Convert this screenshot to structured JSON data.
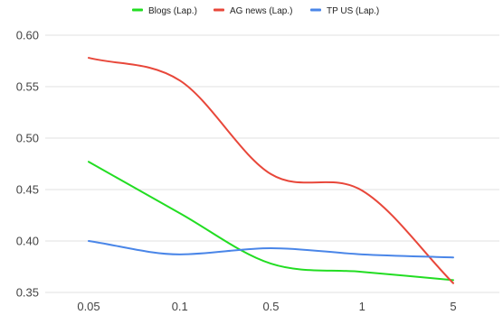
{
  "chart_data": {
    "type": "line",
    "title": "",
    "xlabel": "",
    "ylabel": "",
    "categories": [
      "0.05",
      "0.1",
      "0.5",
      "1",
      "5"
    ],
    "ylim": [
      0.35,
      0.6
    ],
    "yticks": [
      "0.35",
      "0.40",
      "0.45",
      "0.50",
      "0.55",
      "0.60"
    ],
    "grid": true,
    "smooth": true,
    "legend_position": "top-center",
    "series": [
      {
        "name": "Blogs (Lap.)",
        "color": "#22dd22",
        "values": [
          0.477,
          0.427,
          0.378,
          0.37,
          0.362
        ]
      },
      {
        "name": "AG news (Lap.)",
        "color": "#e8473a",
        "values": [
          0.578,
          0.556,
          0.465,
          0.449,
          0.359
        ]
      },
      {
        "name": "TP US (Lap.)",
        "color": "#4a86e8",
        "values": [
          0.4,
          0.387,
          0.393,
          0.387,
          0.384
        ]
      }
    ]
  }
}
